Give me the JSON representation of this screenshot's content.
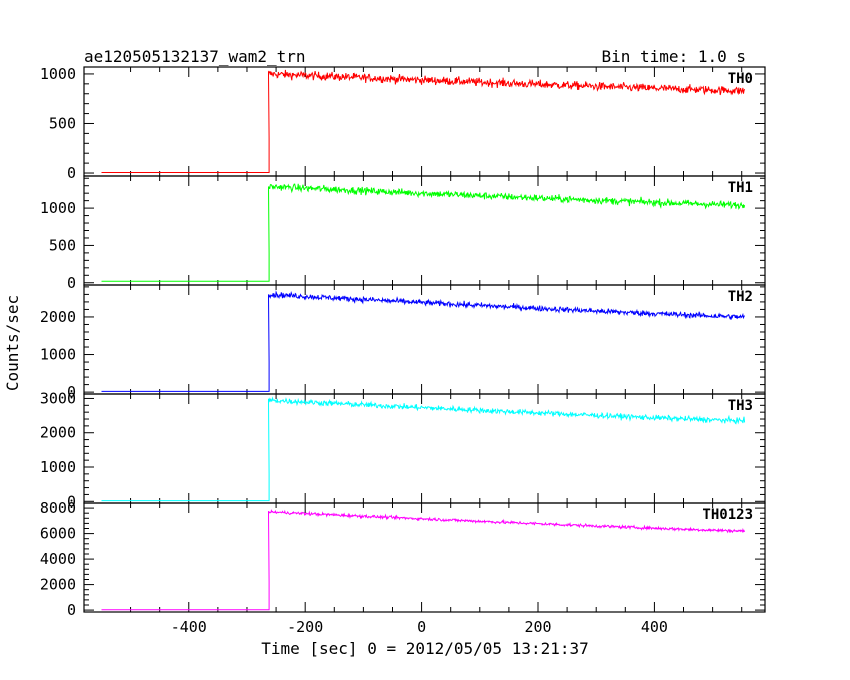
{
  "chart_data": {
    "type": "line",
    "title_left": "ae120505132137_wam2_trn",
    "title_right": "Bin time: 1.0 s",
    "xlabel": "Time [sec] 0 = 2012/05/05 13:21:37",
    "ylabel": "Counts/sec",
    "xlim": [
      -580,
      590
    ],
    "x_ticks": [
      -400,
      -200,
      0,
      200,
      400
    ],
    "grid": false,
    "series": [
      {
        "name": "TH0",
        "color": "#ff0000",
        "ylim": [
          -30,
          1070
        ],
        "y_ticks": [
          0,
          500,
          1000
        ],
        "baseline": 5,
        "onset_x": -262,
        "rise_level": 350,
        "start_x": -263,
        "start_level": 1000,
        "end_x": 555,
        "end_level": 830,
        "noise": 40
      },
      {
        "name": "TH1",
        "color": "#00ff00",
        "ylim": [
          -30,
          1430
        ],
        "y_ticks": [
          0,
          500,
          1000
        ],
        "baseline": 20,
        "onset_x": -262,
        "rise_level": 400,
        "start_x": -263,
        "start_level": 1290,
        "end_x": 555,
        "end_level": 1040,
        "noise": 45
      },
      {
        "name": "TH2",
        "color": "#0000ff",
        "ylim": [
          -50,
          2850
        ],
        "y_ticks": [
          0,
          1000,
          2000
        ],
        "baseline": 20,
        "onset_x": -262,
        "rise_level": 800,
        "start_x": -263,
        "start_level": 2600,
        "end_x": 555,
        "end_level": 2000,
        "noise": 70
      },
      {
        "name": "TH3",
        "color": "#00ffff",
        "ylim": [
          -50,
          3130
        ],
        "y_ticks": [
          0,
          1000,
          2000,
          3000
        ],
        "baseline": 20,
        "onset_x": -262,
        "rise_level": 800,
        "start_x": -263,
        "start_level": 2950,
        "end_x": 555,
        "end_level": 2350,
        "noise": 75
      },
      {
        "name": "TH0123",
        "color": "#ff00ff",
        "ylim": [
          -150,
          8400
        ],
        "y_ticks": [
          0,
          2000,
          4000,
          6000,
          8000
        ],
        "baseline": 20,
        "onset_x": -262,
        "rise_level": 2200,
        "start_x": -263,
        "start_level": 7700,
        "end_x": 555,
        "end_level": 6200,
        "noise": 110
      }
    ]
  }
}
